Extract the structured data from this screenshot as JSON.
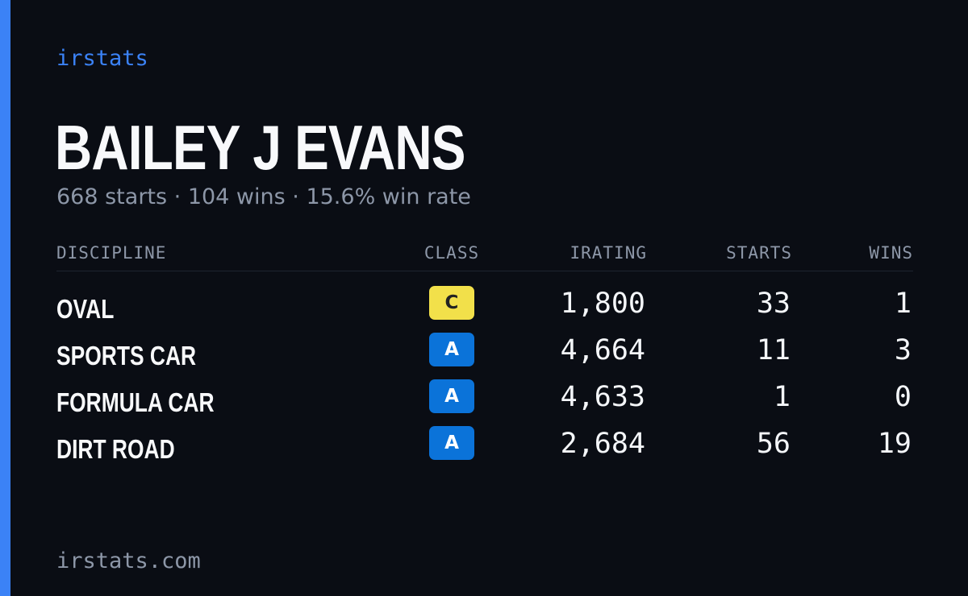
{
  "brand": {
    "name": "irstats",
    "domain": "irstats.com",
    "accent_color": "#3b82f6"
  },
  "driver": {
    "name": "BAILEY J EVANS",
    "summary": "668 starts · 104 wins · 15.6% win rate"
  },
  "table": {
    "headers": {
      "discipline": "DISCIPLINE",
      "class": "CLASS",
      "irating": "IRATING",
      "starts": "STARTS",
      "wins": "WINS"
    },
    "rows": [
      {
        "discipline": "OVAL",
        "class": "C",
        "class_bg": "#f2e04a",
        "class_fg": "#222222",
        "irating": "1,800",
        "starts": "33",
        "wins": "1"
      },
      {
        "discipline": "SPORTS CAR",
        "class": "A",
        "class_bg": "#0b73d9",
        "class_fg": "#ffffff",
        "irating": "4,664",
        "starts": "11",
        "wins": "3"
      },
      {
        "discipline": "FORMULA CAR",
        "class": "A",
        "class_bg": "#0b73d9",
        "class_fg": "#ffffff",
        "irating": "4,633",
        "starts": "1",
        "wins": "0"
      },
      {
        "discipline": "DIRT ROAD",
        "class": "A",
        "class_bg": "#0b73d9",
        "class_fg": "#ffffff",
        "irating": "2,684",
        "starts": "56",
        "wins": "19"
      }
    ]
  }
}
